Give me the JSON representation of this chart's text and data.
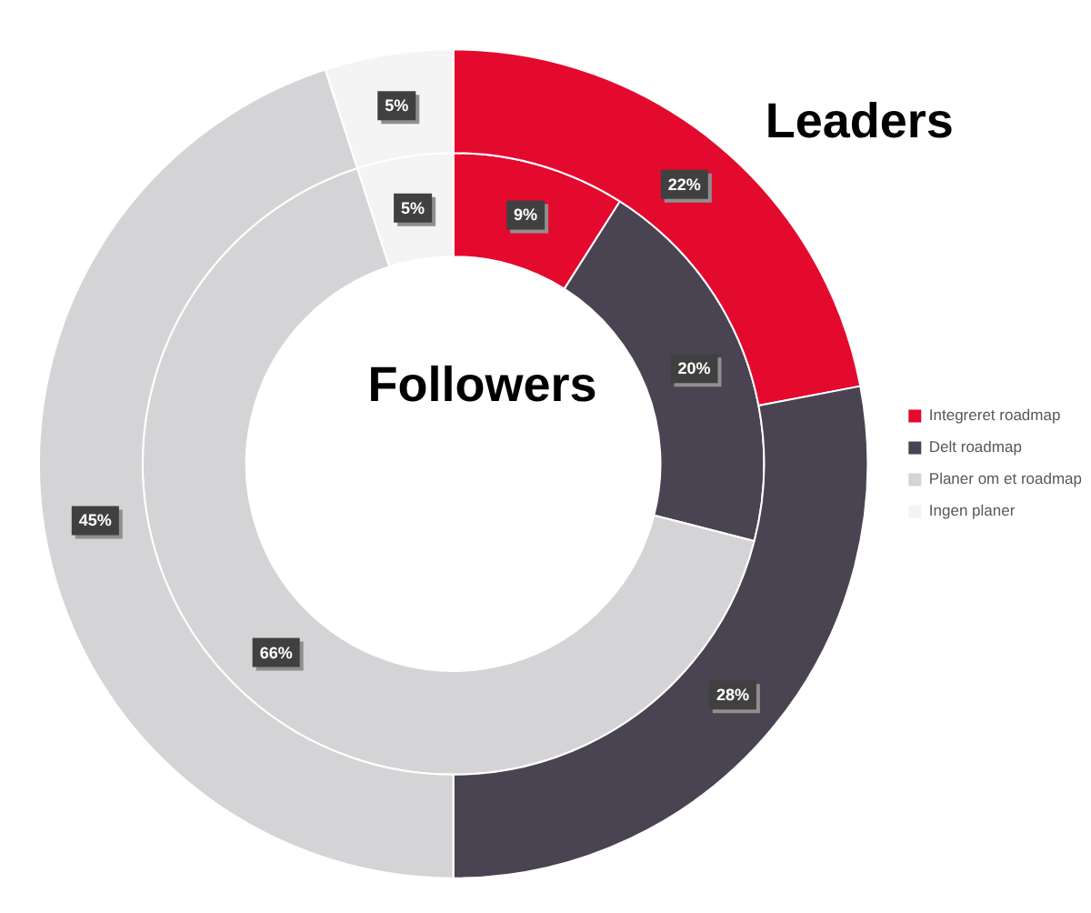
{
  "chart_data": {
    "type": "donut",
    "categories": [
      "Integreret roadmap",
      "Delt roadmap",
      "Planer om et roadmap",
      "Ingen planer"
    ],
    "colors": [
      "#e30a2e",
      "#4a4351",
      "#d4d4d6",
      "#f4f4f4"
    ],
    "series": [
      {
        "name": "Leaders",
        "values": [
          22,
          28,
          45,
          5
        ],
        "value_labels": [
          "22%",
          "28%",
          "45%",
          "5%"
        ]
      },
      {
        "name": "Followers",
        "values": [
          9,
          20,
          66,
          5
        ],
        "value_labels": [
          "9%",
          "20%",
          "66%",
          "5%"
        ]
      }
    ],
    "legend": "right"
  }
}
